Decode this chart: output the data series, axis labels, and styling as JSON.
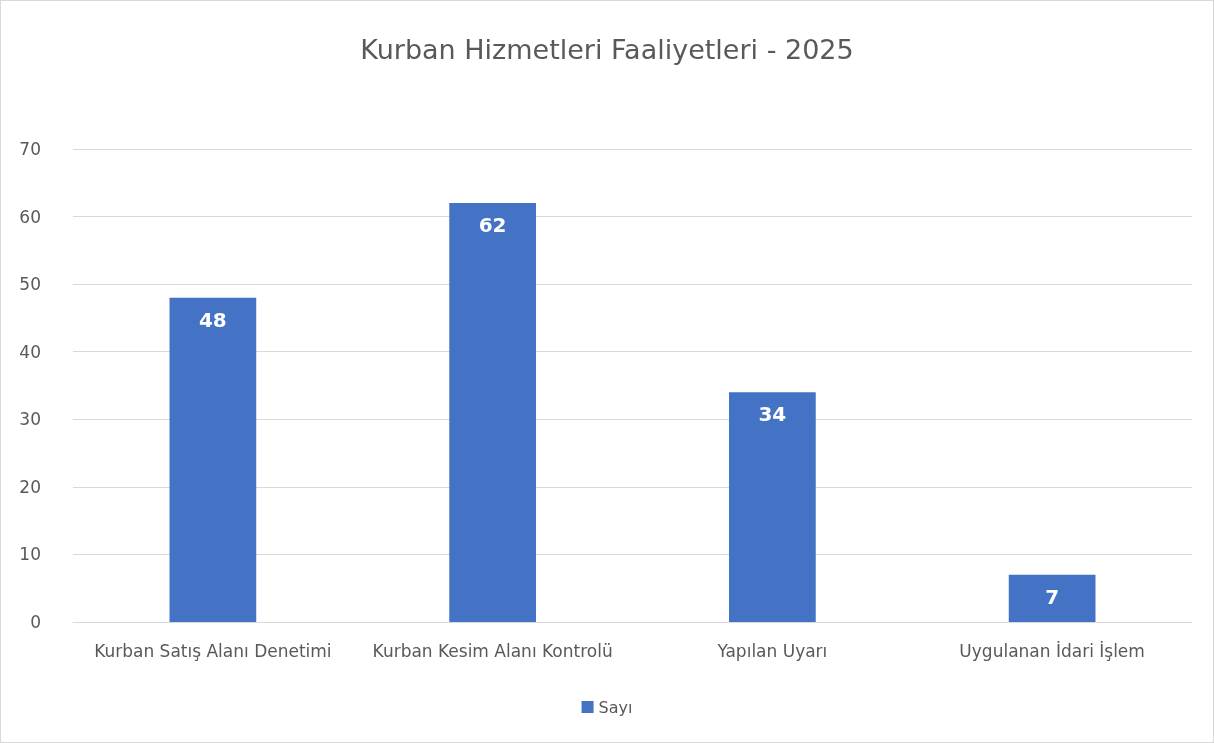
{
  "chart_data": {
    "type": "bar",
    "title": "Kurban Hizmetleri Faaliyetleri - 2025",
    "categories": [
      "Kurban Satış Alanı Denetimi",
      "Kurban Kesim Alanı Kontrolü",
      "Yapılan Uyarı",
      "Uygulanan İdari İşlem"
    ],
    "series": [
      {
        "name": "Sayı",
        "color": "#4472c4",
        "values": [
          48,
          62,
          34,
          7
        ]
      }
    ],
    "ylim": [
      0,
      70
    ],
    "yticks": [
      0,
      10,
      20,
      30,
      40,
      50,
      60,
      70
    ],
    "grid": "y",
    "legend": "bottom",
    "data_labels": true
  }
}
